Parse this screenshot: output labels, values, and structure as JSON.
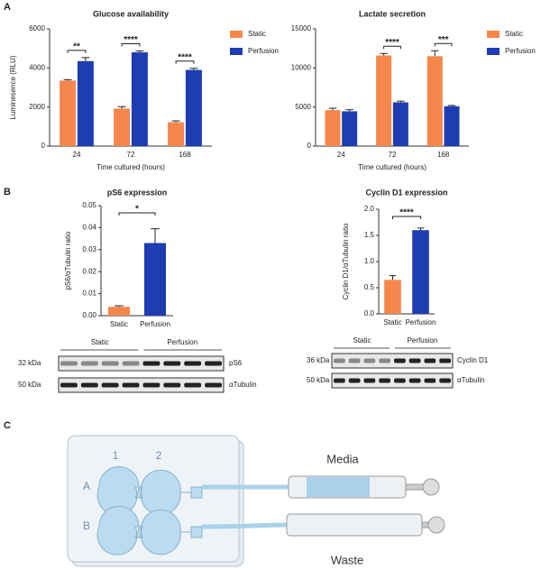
{
  "panels": {
    "a": "A",
    "b": "B",
    "c": "C"
  },
  "chart_data": [
    {
      "type": "bar",
      "title": "Glucose availability",
      "x_label": "Time cultured (hours)",
      "y_label": "Luminesence (RLU)",
      "categories": [
        "24",
        "72",
        "168"
      ],
      "series": [
        {
          "name": "Static",
          "color": "#f5874c",
          "values": [
            3350,
            1920,
            1220
          ],
          "errors": [
            50,
            100,
            70
          ]
        },
        {
          "name": "Perfusion",
          "color": "#1e3db3",
          "values": [
            4350,
            4800,
            3900
          ],
          "errors": [
            180,
            70,
            80
          ]
        }
      ],
      "significance": [
        "**",
        "****",
        "****"
      ],
      "ylim": [
        0,
        6000
      ],
      "yticks": [
        0,
        2000,
        4000,
        6000
      ],
      "legend": "right"
    },
    {
      "type": "bar",
      "title": "Lactate secretion",
      "x_label": "Time cultured (hours)",
      "categories": [
        "24",
        "72",
        "168"
      ],
      "series": [
        {
          "name": "Static",
          "color": "#f5874c",
          "values": [
            4600,
            11600,
            11500
          ],
          "errors": [
            250,
            250,
            700
          ]
        },
        {
          "name": "Perfusion",
          "color": "#1e3db3",
          "values": [
            4450,
            5600,
            5100
          ],
          "errors": [
            200,
            150,
            100
          ]
        }
      ],
      "significance": [
        null,
        "****",
        "***"
      ],
      "ylim": [
        0,
        15000
      ],
      "yticks": [
        0,
        5000,
        10000,
        15000
      ],
      "legend": "right"
    },
    {
      "type": "bar",
      "title": "pS6 expression",
      "y_label": "pS6/αTubulin ratio",
      "categories": [
        "Static",
        "Perfusion"
      ],
      "values": [
        0.004,
        0.033
      ],
      "errors": [
        0.0005,
        0.0065
      ],
      "colors": [
        "#f5874c",
        "#1e3db3"
      ],
      "significance": "*",
      "ylim": [
        0,
        0.05
      ],
      "yticks": [
        {
          "value": 0,
          "label": "0.00"
        },
        0.01,
        0.02,
        0.03,
        0.04,
        0.05
      ]
    },
    {
      "type": "bar",
      "title": "Cyclin D1 expression",
      "y_label": "Cyclin D1/αTubulin ratio",
      "categories": [
        "Static",
        "Perfusion"
      ],
      "values": [
        0.65,
        1.6
      ],
      "errors": [
        0.08,
        0.04
      ],
      "colors": [
        "#f5874c",
        "#1e3db3"
      ],
      "significance": "****",
      "ylim": [
        0,
        2
      ],
      "yticks": [
        {
          "value": 0,
          "label": "0.0"
        },
        0.5,
        {
          "value": 1,
          "label": "1.0"
        },
        1.5,
        {
          "value": 2,
          "label": "2.0"
        }
      ]
    }
  ],
  "blots": [
    {
      "groups": [
        "Static",
        "Perfusion"
      ],
      "rows": [
        {
          "size": "32 kDa",
          "protein": "pS6"
        },
        {
          "size": "50 kDa",
          "protein": "αTubulin"
        }
      ]
    },
    {
      "groups": [
        "Static",
        "Perfusion"
      ],
      "rows": [
        {
          "size": "36 kDa",
          "protein": "Cyclin D1"
        },
        {
          "size": "50 kDa",
          "protein": "αTubulin"
        }
      ]
    }
  ],
  "diagram": {
    "columns": [
      "1",
      "2"
    ],
    "rows": [
      "A",
      "B"
    ],
    "inlet": "Media",
    "outlet": "Waste"
  }
}
